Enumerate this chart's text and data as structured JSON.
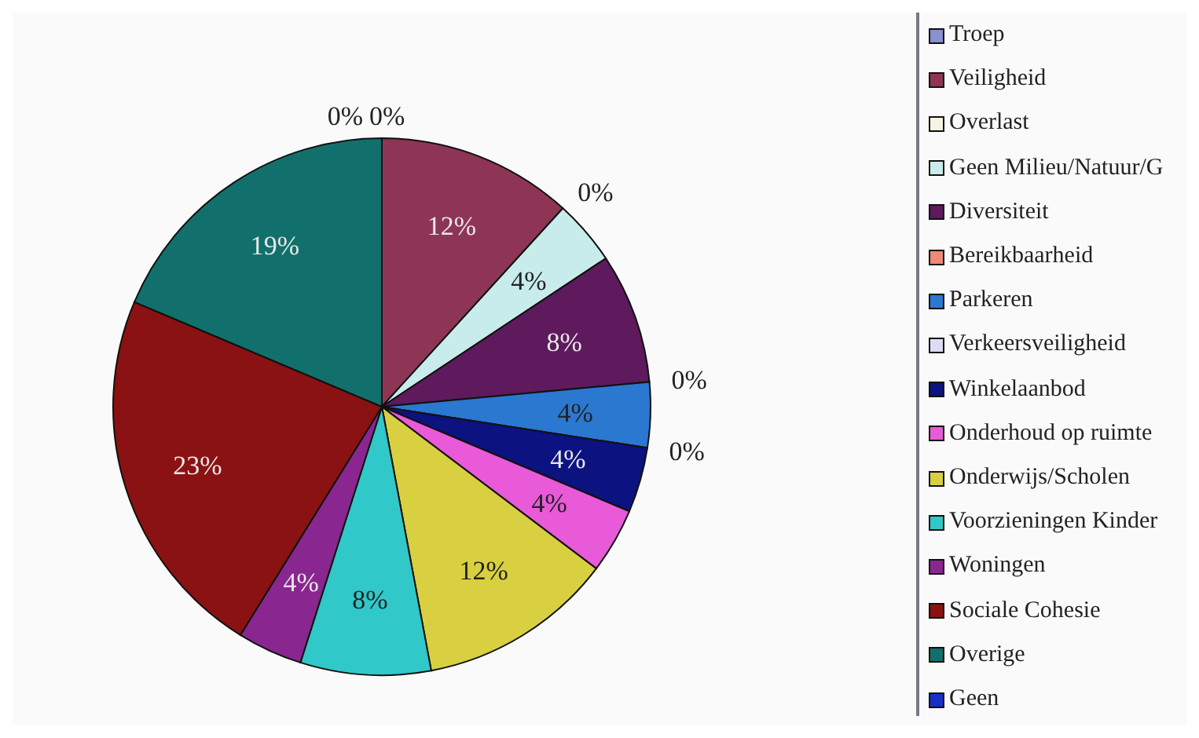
{
  "chart_data": {
    "type": "pie",
    "categories": [
      "Troep",
      "Veiligheid",
      "Overlast",
      "Geen Milieu/Natuur/G",
      "Diversiteit",
      "Bereikbaarheid",
      "Parkeren",
      "Verkeersveiligheid",
      "Winkelaanbod",
      "Onderhoud op ruimte",
      "Onderwijs/Scholen",
      "Voorzieningen Kinder",
      "Woningen",
      "Sociale Cohesie",
      "Overige",
      "Geen"
    ],
    "values": [
      0,
      12,
      0,
      4,
      8,
      0,
      4,
      0,
      4,
      4,
      12,
      8,
      4,
      23,
      19,
      0
    ],
    "value_labels": [
      "0%",
      "12%",
      "0%",
      "4%",
      "8%",
      "0%",
      "4%",
      "0%",
      "4%",
      "4%",
      "12%",
      "8%",
      "4%",
      "23%",
      "19%",
      "0%"
    ],
    "colors": [
      "#8a8fd0",
      "#8e3556",
      "#f4f4e0",
      "#c8ecec",
      "#5e1a5c",
      "#f08878",
      "#2a78d0",
      "#dcdcf4",
      "#0c1280",
      "#e85ad8",
      "#d8d040",
      "#30c8c8",
      "#8a2690",
      "#8a1212",
      "#12706c",
      "#1830c8"
    ],
    "legend": "right"
  }
}
